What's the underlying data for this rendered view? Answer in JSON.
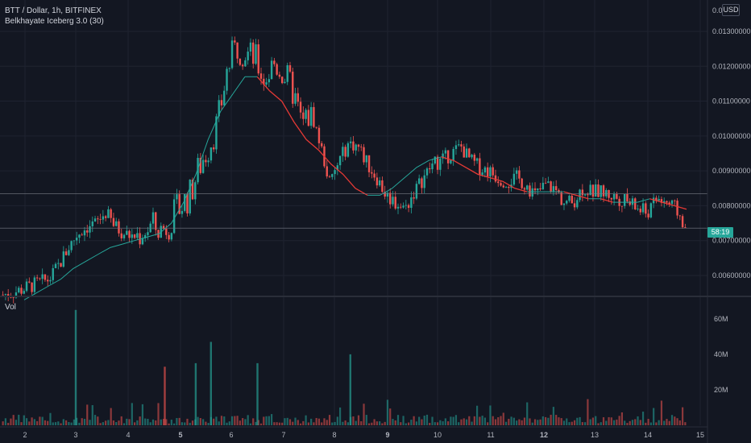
{
  "header": {
    "symbol_line": "BTT / Dollar, 1h, BITFINEX",
    "indicator_line": "Belkhayate Iceberg 3.0 (30)"
  },
  "currency_badge": "USD",
  "countdown_tag": "58:19",
  "volume_pane_label": "Vol",
  "colors": {
    "background": "#131722",
    "up": "#26a69a",
    "down": "#ef5350",
    "ma_up": "#26a69a",
    "ma_down": "#e53935",
    "grid": "#1f2330"
  },
  "chart_data": {
    "type": "candlestick",
    "price_axis": {
      "ticks": [
        "0.01300000",
        "0.01200000",
        "0.01100000",
        "0.01000000",
        "0.00900000",
        "0.00800000",
        "0.00700000",
        "0.00600000"
      ],
      "top_tick": "0.0",
      "range": [
        0.0054,
        0.0139
      ]
    },
    "volume_axis": {
      "ticks": [
        "60M",
        "40M",
        "20M"
      ],
      "range": [
        0,
        69
      ]
    },
    "x_axis": {
      "ticks": [
        "2",
        "3",
        "4",
        "5",
        "6",
        "7",
        "8",
        "9",
        "10",
        "11",
        "12",
        "13",
        "14",
        "15"
      ],
      "bold_ticks": [
        "5",
        "9",
        "12"
      ]
    },
    "price_path": [
      0.00545,
      0.0055,
      0.0056,
      0.0057,
      0.0058,
      0.0059,
      0.0063,
      0.0068,
      0.0072,
      0.0074,
      0.0075,
      0.0078,
      0.0074,
      0.0072,
      0.0071,
      0.0073,
      0.0074,
      0.0073,
      0.0076,
      0.008,
      0.0083,
      0.0091,
      0.0097,
      0.0104,
      0.0119,
      0.0126,
      0.0124,
      0.0122,
      0.0116,
      0.0121,
      0.0118,
      0.0113,
      0.0103,
      0.0107,
      0.0097,
      0.0086,
      0.0093,
      0.0098,
      0.0097,
      0.0092,
      0.0088,
      0.0083,
      0.0081,
      0.0079,
      0.0084,
      0.0088,
      0.0092,
      0.0093,
      0.0095,
      0.0097,
      0.0093,
      0.0091,
      0.009,
      0.0088,
      0.0087,
      0.0088,
      0.0086,
      0.0083,
      0.0086,
      0.0085,
      0.0081,
      0.0081,
      0.0085,
      0.0084,
      0.0084,
      0.0083,
      0.0082,
      0.0081,
      0.0079,
      0.0078,
      0.0082,
      0.0081,
      0.0079,
      0.0074
    ],
    "ma_path": [
      0.0053,
      0.0055,
      0.0057,
      0.0059,
      0.0062,
      0.0064,
      0.0066,
      0.0068,
      0.0069,
      0.007,
      0.0071,
      0.0072,
      0.0075,
      0.0081,
      0.0089,
      0.0099,
      0.0107,
      0.0112,
      0.0117,
      0.0117,
      0.0113,
      0.011,
      0.0104,
      0.0099,
      0.0096,
      0.0092,
      0.0089,
      0.0085,
      0.0083,
      0.0083,
      0.0085,
      0.0088,
      0.0091,
      0.0093,
      0.0094,
      0.0093,
      0.0091,
      0.0089,
      0.0088,
      0.0087,
      0.0085,
      0.0084,
      0.0084,
      0.0084,
      0.0084,
      0.0083,
      0.0082,
      0.0082,
      0.0081,
      0.0081,
      0.0081,
      0.0082,
      0.0081,
      0.008,
      0.0079
    ],
    "last_price_line": 0.00736,
    "crosshair_price_line": 0.00834,
    "volume_spikes": [
      {
        "day": "3",
        "value": 65,
        "color": "up"
      },
      {
        "day": "5.6",
        "value": 47,
        "color": "up"
      },
      {
        "day": "6.5",
        "value": 35,
        "color": "up"
      },
      {
        "day": "8.3",
        "value": 40,
        "color": "up"
      },
      {
        "day": "5.3",
        "value": 35,
        "color": "up"
      },
      {
        "day": "4.7",
        "value": 33,
        "color": "down"
      }
    ]
  }
}
